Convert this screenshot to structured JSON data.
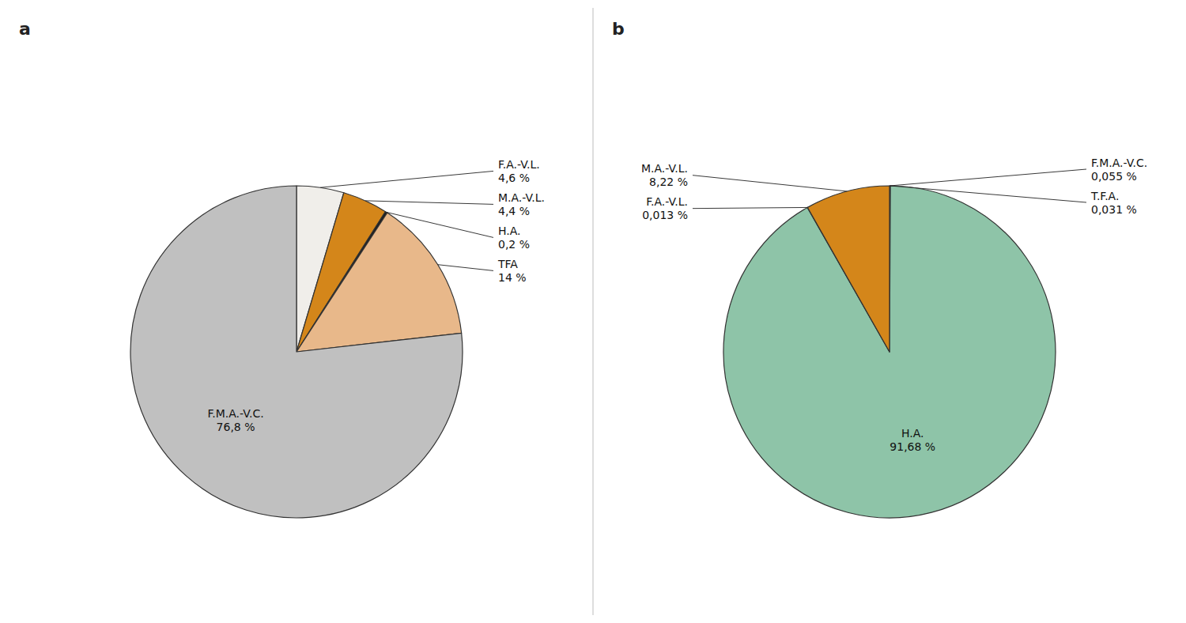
{
  "chart_data": [
    {
      "type": "pie",
      "title": "a",
      "categories": [
        "F.A.-V.L.",
        "M.A.-V.L.",
        "H.A.",
        "TFA",
        "F.M.A.-V.C."
      ],
      "values": [
        4.6,
        4.4,
        0.2,
        14.0,
        76.8
      ],
      "value_labels": [
        "4,6 %",
        "4,4 %",
        "0,2 %",
        "14 %",
        "76,8 %"
      ],
      "colors": [
        "#f0eeea",
        "#d4861a",
        "#1a1a1a",
        "#e8b88a",
        "#c0c0c0"
      ],
      "data_labels": true
    },
    {
      "type": "pie",
      "title": "b",
      "categories": [
        "F.M.A.-V.C.",
        "T.F.A.",
        "H.A.",
        "F.A.-V.L.",
        "M.A.-V.L."
      ],
      "values": [
        0.055,
        0.031,
        91.68,
        0.013,
        8.22
      ],
      "value_labels": [
        "0,055 %",
        "0,031 %",
        "91,68 %",
        "0,013 %",
        "8,22 %"
      ],
      "colors": [
        "#2a2a2a",
        "#b0b0b0",
        "#8ec4a8",
        "#8ec4a8",
        "#d4861a"
      ],
      "data_labels": true
    }
  ]
}
